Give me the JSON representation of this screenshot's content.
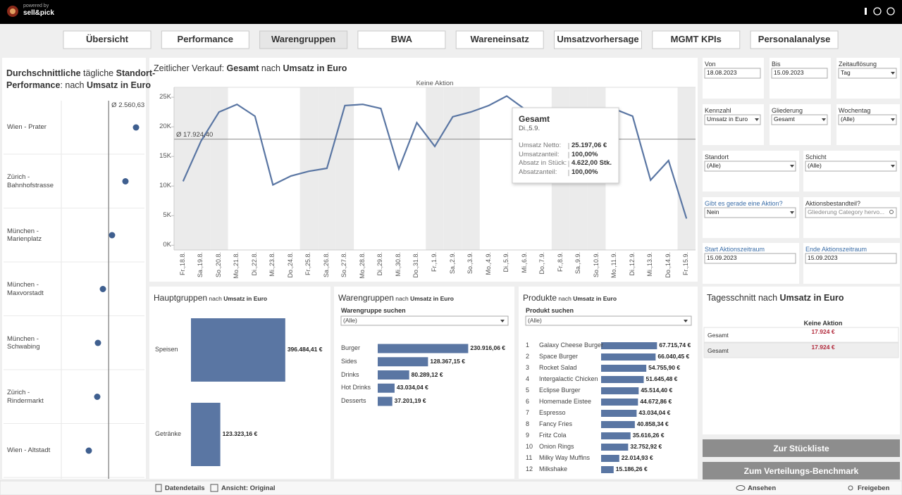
{
  "header": {
    "powered_by": "powered by",
    "brand": "sell&pick"
  },
  "tabs": [
    "Übersicht",
    "Performance",
    "Warengruppen",
    "BWA",
    "Wareneinsatz",
    "Umsatzvorhersage",
    "MGMT KPIs",
    "Personalanalyse"
  ],
  "chart_data": [
    {
      "type": "dot",
      "title_lines": [
        [
          {
            "text": "Durchschnittliche",
            "bold": true
          },
          {
            "text": " tägliche ",
            "bold": false
          },
          {
            "text": "Standort-",
            "bold": true
          }
        ],
        [
          {
            "text": "Performance",
            "bold": true
          },
          {
            "text": ": nach ",
            "bold": false
          },
          {
            "text": "Umsatz in Euro",
            "bold": true
          }
        ]
      ],
      "categories": [
        "Wien - Prater",
        "Zürich - Bahnhofstrasse",
        "München - Marienplatz",
        "München - Maxvorstadt",
        "München - Schwabing",
        "Zürich - Rindermarkt",
        "Wien - Altstadt"
      ],
      "values": [
        3145,
        2919,
        2633,
        2438,
        2332,
        2317,
        2137
      ],
      "xlim": [
        1550,
        3250
      ],
      "color": "#3f5f8f",
      "reference": {
        "value": 2560.63,
        "label": "Ø 2.560,63"
      }
    },
    {
      "type": "line",
      "title_parts": [
        {
          "text": "Zeitlicher Verkauf: ",
          "bold": false
        },
        {
          "text": "Gesamt",
          "bold": true
        },
        {
          "text": " nach ",
          "bold": false
        },
        {
          "text": "Umsatz in Euro",
          "bold": true
        }
      ],
      "header": "Keine Aktion",
      "categories": [
        "Fr.,18.8.",
        "Sa.,19.8.",
        "So.,20.8.",
        "Mo.,21.8.",
        "Di.,22.8.",
        "Mi.,23.8.",
        "Do.,24.8.",
        "Fr.,25.8.",
        "Sa.,26.8.",
        "So.,27.8.",
        "Mo.,28.8.",
        "Di.,29.8.",
        "Mi.,30.8.",
        "Do.,31.8.",
        "Fr.,1.9.",
        "Sa.,2.9.",
        "So.,3.9.",
        "Mo.,4.9.",
        "Di.,5.9.",
        "Mi.,6.9.",
        "Do.,7.9.",
        "Fr.,8.9.",
        "Sa.,9.9.",
        "So.,10.9.",
        "Mo.,11.9.",
        "Di.,12.9.",
        "Mi.,13.9.",
        "Do.,14.9.",
        "Fr.,15.9."
      ],
      "values": [
        10800,
        17600,
        22500,
        23800,
        21800,
        10200,
        11700,
        12500,
        13000,
        23600,
        23800,
        23100,
        12900,
        20700,
        16700,
        21700,
        22500,
        23600,
        25197.06,
        23000,
        21500,
        22500,
        23000,
        22800,
        23000,
        21800,
        11000,
        14300,
        4500
      ],
      "color": "#5a76a3",
      "ylim": [
        -800,
        26200
      ],
      "yticks": [
        {
          "value": 0,
          "label": "0K"
        },
        {
          "value": 5000,
          "label": "5K"
        },
        {
          "value": 10000,
          "label": "10K"
        },
        {
          "value": 15000,
          "label": "15K"
        },
        {
          "value": 20000,
          "label": "20K"
        },
        {
          "value": 25000,
          "label": "25K"
        }
      ],
      "reference": {
        "value": 17924.4,
        "label": "Ø 17.924,40"
      },
      "tooltip": {
        "title": "Gesamt",
        "date": "Di.,5.9.",
        "rows": [
          {
            "label": "Umsatz Netto:",
            "value": "25.197,06 €"
          },
          {
            "label": "Umsatzanteil:",
            "value": "100,00%"
          },
          {
            "label": "Absatz in Stück:",
            "value": "4.622,00 Stk."
          },
          {
            "label": "Absatzanteil:",
            "value": "100,00%"
          }
        ]
      }
    },
    {
      "type": "hbar",
      "title_parts": [
        {
          "text": "Hauptgruppen",
          "bold": false
        },
        {
          "text": " nach ",
          "bold": false
        },
        {
          "text": "Umsatz in Euro",
          "bold": true
        }
      ],
      "categories": [
        "Speisen",
        "Getränke"
      ],
      "values": [
        396484.41,
        123323.16
      ],
      "value_labels": [
        "396.484,41 €",
        "123.323,16 €"
      ],
      "xlim": [
        0,
        400000
      ],
      "color": "#5a76a3"
    },
    {
      "type": "hbar",
      "title_parts": [
        {
          "text": "Warengruppen",
          "bold": false
        },
        {
          "text": " nach ",
          "bold": false
        },
        {
          "text": "Umsatz in Euro",
          "bold": true
        }
      ],
      "search_label": "Warengruppe suchen",
      "search_value": "(Alle)",
      "categories": [
        "Burger",
        "Sides",
        "Drinks",
        "Hot Drinks",
        "Desserts"
      ],
      "values": [
        230916.06,
        128367.15,
        80289.12,
        43034.04,
        37201.19
      ],
      "value_labels": [
        "230.916,06 €",
        "128.367,15 €",
        "80.289,12 €",
        "43.034,04 €",
        "37.201,19 €"
      ],
      "xlim": [
        0,
        250000
      ],
      "color": "#5a76a3"
    },
    {
      "type": "hbar",
      "title_parts": [
        {
          "text": "Produkte",
          "bold": false
        },
        {
          "text": " nach ",
          "bold": false
        },
        {
          "text": "Umsatz in Euro",
          "bold": true
        }
      ],
      "search_label": "Produkt suchen",
      "search_value": "(Alle)",
      "ranks": [
        1,
        2,
        3,
        4,
        5,
        6,
        7,
        8,
        9,
        10,
        11,
        12
      ],
      "categories": [
        "Galaxy Cheese Burger",
        "Space Burger",
        "Rocket Salad",
        "Intergalactic Chicken",
        "Eclipse Burger",
        "Homemade Eistee",
        "Espresso",
        "Fancy Fries",
        "Fritz Cola",
        "Onion Rings",
        "Milky Way Muffins",
        "Milkshake"
      ],
      "values": [
        67715.74,
        66040.45,
        54755.9,
        51645.48,
        45514.4,
        44672.86,
        43034.04,
        40858.34,
        35616.26,
        32752.92,
        22014.93,
        15186.26
      ],
      "value_labels": [
        "67.715,74 €",
        "66.040,45 €",
        "54.755,90 €",
        "51.645,48 €",
        "45.514,40 €",
        "44.672,86 €",
        "43.034,04 €",
        "40.858,34 €",
        "35.616,26 €",
        "32.752,92 €",
        "22.014,93 €",
        "15.186,26 €"
      ],
      "xlim": [
        0,
        70000
      ],
      "color": "#5a76a3"
    }
  ],
  "filters": [
    {
      "label": "Von",
      "value": "18.08.2023",
      "dropdown": false
    },
    {
      "label": "Bis",
      "value": "15.09.2023",
      "dropdown": false
    },
    {
      "label": "Zeitauflösung",
      "value": "Tag",
      "dropdown": true
    },
    {
      "label": "Kennzahl",
      "value": "Umsatz in Euro",
      "dropdown": true
    },
    {
      "label": "Gliederung",
      "value": "Gesamt",
      "dropdown": true
    },
    {
      "label": "Wochentag",
      "value": "(Alle)",
      "dropdown": true
    },
    {
      "label": "Standort",
      "value": "(Alle)",
      "dropdown": true
    },
    {
      "label": "Schicht",
      "value": "(Alle)",
      "dropdown": true
    },
    {
      "label": "Gibt es gerade eine Aktion?",
      "value": "Nein",
      "dropdown": true,
      "highlight": true
    },
    {
      "label": "Aktionsbestandteil?",
      "placeholder": "Gliederung Category hervo...",
      "dropdown": false
    },
    {
      "label": "Start Aktionszeitraum",
      "value": "15.09.2023",
      "dropdown": false,
      "highlight": true
    },
    {
      "label": "Ende Aktionszeitraum",
      "value": "15.09.2023",
      "dropdown": false,
      "highlight": true
    }
  ],
  "tagesschnitt": {
    "title_parts": [
      {
        "text": "Tagesschnitt",
        "bold": false
      },
      {
        "text": " nach ",
        "bold": false
      },
      {
        "text": "Umsatz in Euro",
        "bold": true
      }
    ],
    "column": "Keine Aktion",
    "rows": [
      [
        "Gesamt",
        "17.924 €"
      ],
      [
        "Gesamt",
        "17.924 €"
      ]
    ]
  },
  "buttons": [
    "Zur Stückliste",
    "Zum Verteilungs-Benchmark"
  ],
  "toolbar": {
    "details": "Datendetails",
    "view": "Ansicht: Original",
    "watch": "Ansehen",
    "share": "Freigeben"
  }
}
